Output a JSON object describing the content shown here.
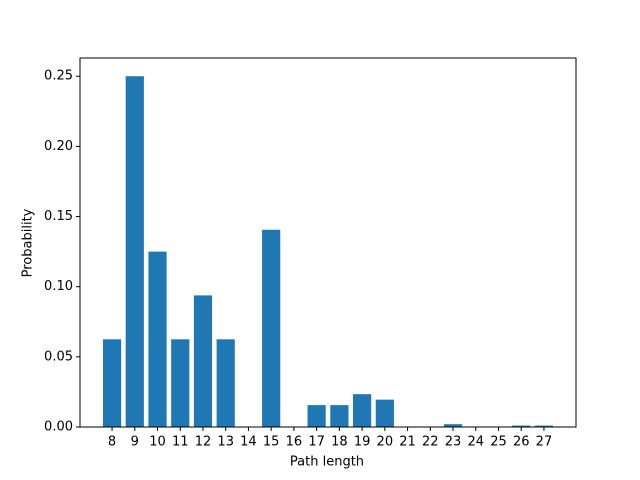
{
  "chart_data": {
    "type": "bar",
    "x": [
      8,
      9,
      10,
      11,
      12,
      13,
      14,
      15,
      16,
      17,
      18,
      19,
      20,
      21,
      22,
      23,
      24,
      25,
      26,
      27
    ],
    "values": [
      0.0625,
      0.25,
      0.125,
      0.0625,
      0.0938,
      0.0625,
      0,
      0.1406,
      0,
      0.0156,
      0.0156,
      0.0234,
      0.0195,
      0,
      0,
      0.002,
      0,
      0,
      0.001,
      0.001
    ],
    "color": "#1f77b4",
    "xlabel": "Path length",
    "ylabel": "Probability",
    "xlim": [
      6.59,
      28.41
    ],
    "xticks": [
      8,
      9,
      10,
      11,
      12,
      13,
      14,
      15,
      16,
      17,
      18,
      19,
      20,
      21,
      22,
      23,
      24,
      25,
      26,
      27
    ],
    "ylim": [
      0,
      0.263
    ],
    "yticks": [
      {
        "value": 0,
        "label": "0.00"
      },
      0.05,
      {
        "value": 0.1,
        "label": "0.10"
      },
      0.15,
      {
        "value": 0.2,
        "label": "0.20"
      },
      0.25
    ]
  }
}
